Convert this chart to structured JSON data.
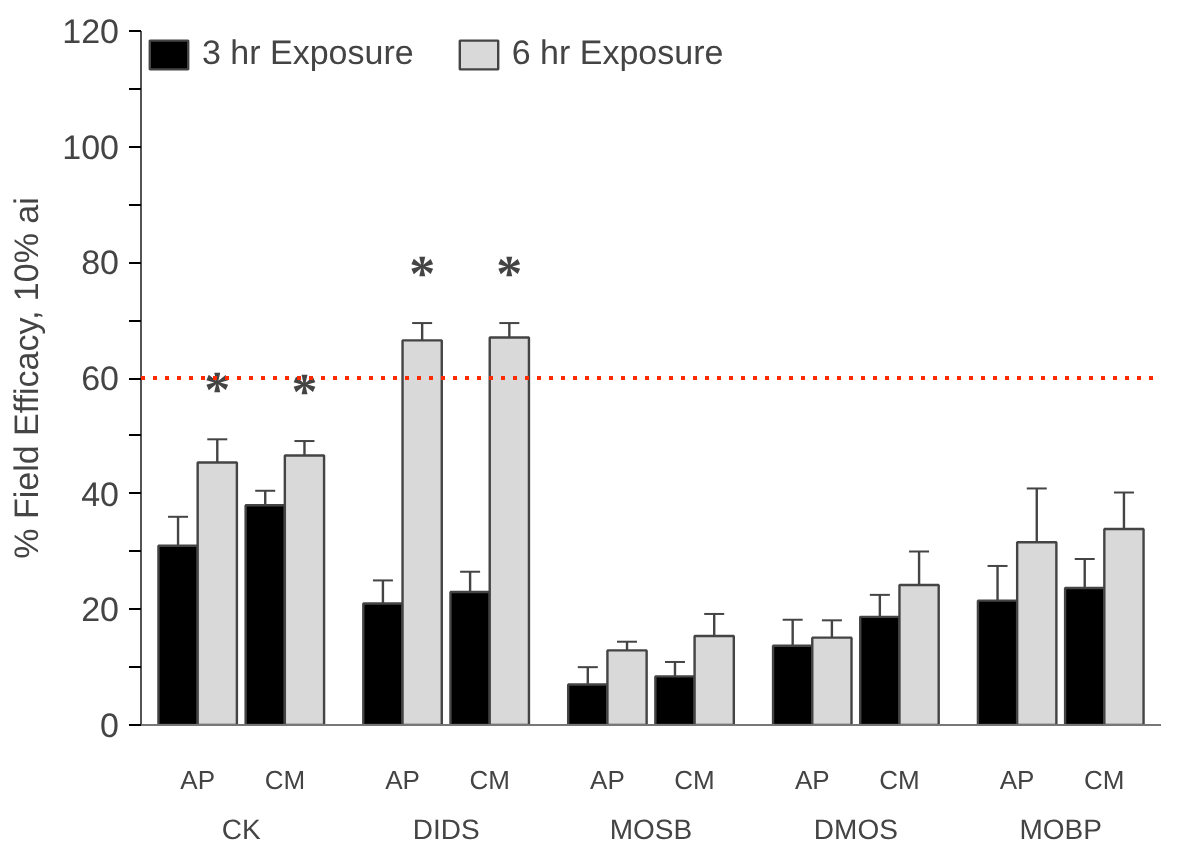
{
  "chart_data": {
    "type": "bar",
    "ylabel": "% Field Efficacy, 10% ai",
    "categories": [
      "AP",
      "CM",
      "AP",
      "CM",
      "AP",
      "CM",
      "AP",
      "CM",
      "AP",
      "CM"
    ],
    "annotations": [
      "CK",
      "DIDS",
      "MOSB",
      "DMOS",
      "MOBP"
    ],
    "series": [
      {
        "name": "3 hr Exposure",
        "color": "#000000",
        "values": [
          31,
          38,
          21,
          23,
          7,
          8.4,
          13.7,
          18.7,
          21.5,
          23.7
        ],
        "errors": [
          5,
          2.5,
          4,
          3.5,
          3,
          2.5,
          4.5,
          3.8,
          6,
          5
        ]
      },
      {
        "name": "6 hr Exposure",
        "color": "#d9d9d9",
        "values": [
          45.4,
          46.6,
          66.5,
          67,
          12.9,
          15.4,
          15.1,
          24.2,
          31.6,
          33.9
        ],
        "errors": [
          4,
          2.5,
          3,
          2.5,
          1.5,
          3.8,
          3,
          5.8,
          9.3,
          6.3
        ],
        "value_labels": [
          "*",
          "*",
          "*",
          "*",
          null,
          null,
          null,
          null,
          null,
          null
        ]
      }
    ],
    "ylim": [
      0,
      120
    ],
    "yticks": [
      0,
      {
        "value": 10,
        "label": null
      },
      20,
      {
        "value": 30,
        "label": null
      },
      40,
      {
        "value": 50,
        "label": null
      },
      60,
      {
        "value": 70,
        "label": null
      },
      80,
      {
        "value": 90,
        "label": null
      },
      100,
      {
        "value": 110,
        "label": null
      },
      120
    ],
    "ref_lines": [
      {
        "axis": "y",
        "value": 60,
        "label": null,
        "color": "#ff2a00",
        "line_style": "dotted"
      }
    ],
    "grid": false,
    "legend": "top left"
  }
}
